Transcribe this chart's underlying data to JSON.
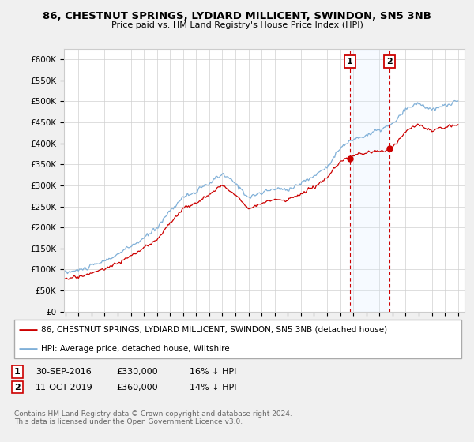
{
  "title": "86, CHESTNUT SPRINGS, LYDIARD MILLICENT, SWINDON, SN5 3NB",
  "subtitle": "Price paid vs. HM Land Registry's House Price Index (HPI)",
  "ytick_labels": [
    "£0",
    "£50K",
    "£100K",
    "£150K",
    "£200K",
    "£250K",
    "£300K",
    "£350K",
    "£400K",
    "£450K",
    "£500K",
    "£550K",
    "£600K"
  ],
  "yticks": [
    0,
    50000,
    100000,
    150000,
    200000,
    250000,
    300000,
    350000,
    400000,
    450000,
    500000,
    550000,
    600000
  ],
  "ylim": [
    0,
    625000
  ],
  "xlim_start": 1994.9,
  "xlim_end": 2025.5,
  "xticks": [
    1995,
    1996,
    1997,
    1998,
    1999,
    2000,
    2001,
    2002,
    2003,
    2004,
    2005,
    2006,
    2007,
    2008,
    2009,
    2010,
    2011,
    2012,
    2013,
    2014,
    2015,
    2016,
    2017,
    2018,
    2019,
    2020,
    2021,
    2022,
    2023,
    2024,
    2025
  ],
  "sale1_x": 2016.75,
  "sale2_x": 2019.78,
  "house_color": "#cc0000",
  "hpi_color": "#80b0d8",
  "shade_color": "#ddeeff",
  "vline_color": "#cc0000",
  "background_color": "#f0f0f0",
  "plot_bg_color": "#ffffff",
  "legend_house_label": "86, CHESTNUT SPRINGS, LYDIARD MILLICENT, SWINDON, SN5 3NB (detached house)",
  "legend_hpi_label": "HPI: Average price, detached house, Wiltshire",
  "footnote": "Contains HM Land Registry data © Crown copyright and database right 2024.\nThis data is licensed under the Open Government Licence v3.0."
}
